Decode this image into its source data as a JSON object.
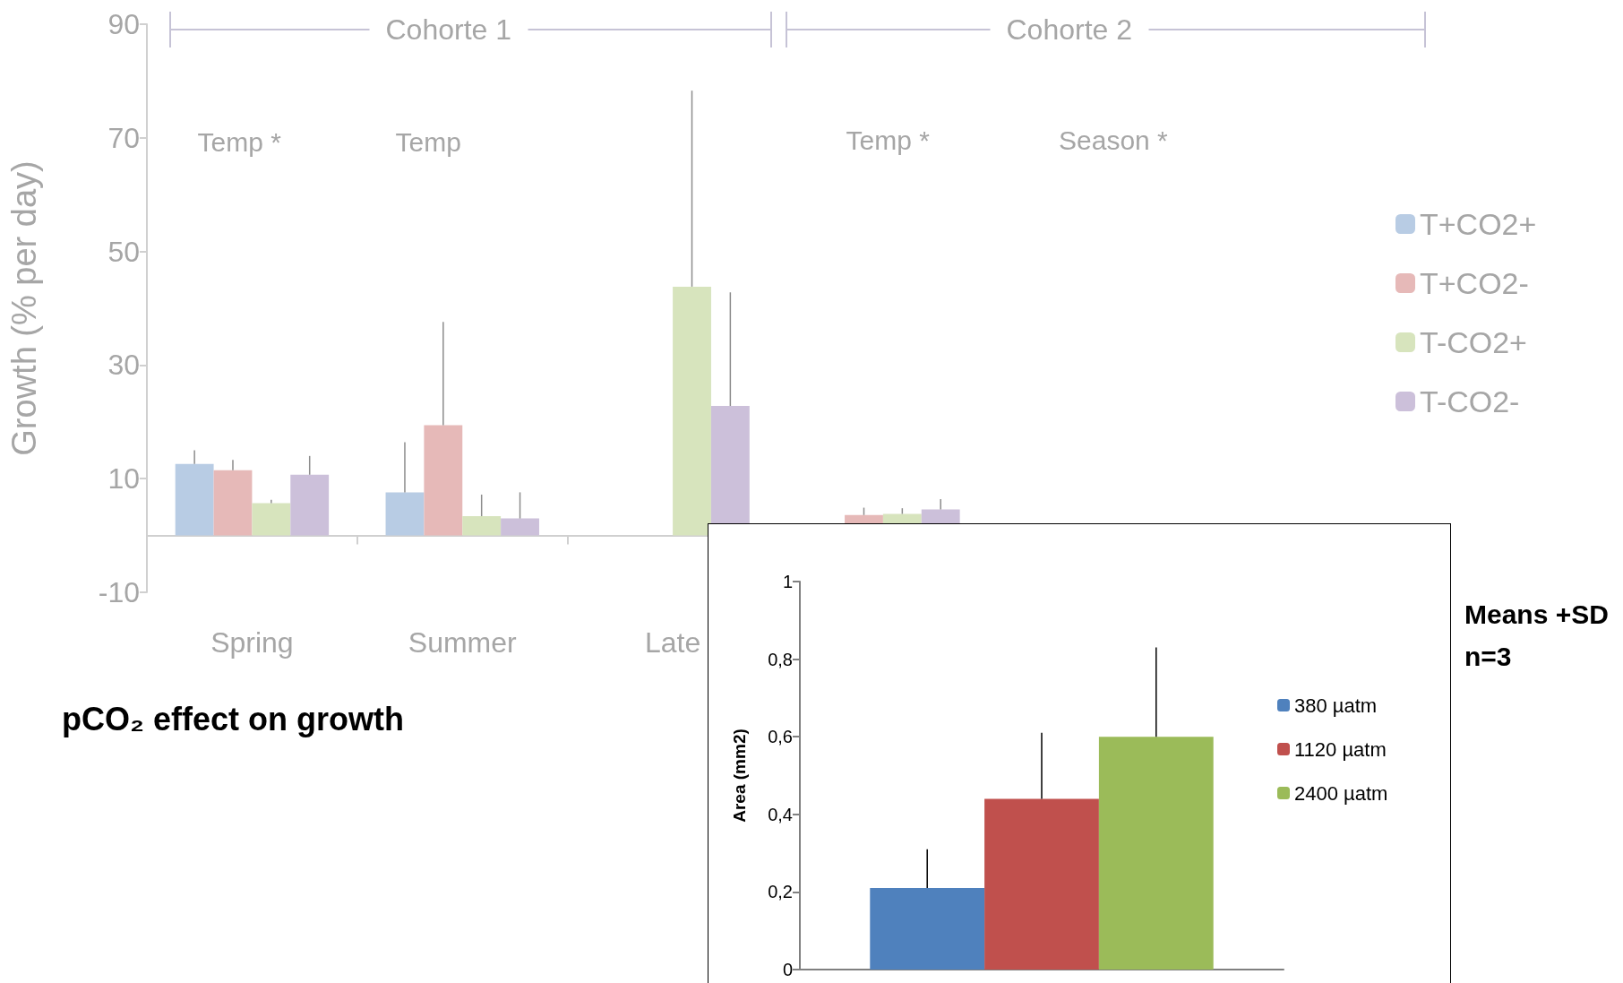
{
  "chart_data": [
    {
      "type": "bar",
      "title": "pCO₂ effect on growth",
      "ylabel": "Growth (% per day)",
      "categories": [
        "Spring",
        "Summer",
        "Late",
        null,
        null,
        null
      ],
      "series": [
        {
          "name": "T+CO2+",
          "color": "#b8cce4",
          "values": [
            12.6,
            7.6,
            null,
            null,
            null,
            null
          ],
          "errors": [
            [
              12.6,
              15.0
            ],
            [
              7.6,
              16.4
            ],
            null,
            null,
            null,
            null
          ]
        },
        {
          "name": "T+CO2-",
          "color": "#e6b9b8",
          "values": [
            11.5,
            19.4,
            null,
            3.6,
            null,
            null
          ],
          "errors": [
            [
              11.5,
              13.3
            ],
            [
              19.4,
              37.6
            ],
            null,
            [
              3.6,
              4.9
            ],
            null,
            null
          ]
        },
        {
          "name": "T-CO2+",
          "color": "#d7e4bd",
          "values": [
            5.7,
            3.4,
            43.8,
            3.8,
            null,
            null
          ],
          "errors": [
            [
              5.7,
              6.3
            ],
            [
              3.4,
              7.2
            ],
            [
              43.8,
              78.3
            ],
            [
              3.8,
              4.8
            ],
            null,
            null
          ]
        },
        {
          "name": "T-CO2-",
          "color": "#ccc0da",
          "values": [
            10.7,
            3.0,
            22.8,
            4.6,
            null,
            null
          ],
          "errors": [
            [
              10.7,
              14.0
            ],
            [
              3.0,
              7.6
            ],
            [
              22.8,
              42.8
            ],
            [
              4.6,
              6.4
            ],
            null,
            null
          ]
        }
      ],
      "ylim": [
        -10,
        90
      ],
      "yticks": [
        -10,
        10,
        30,
        50,
        70,
        90
      ],
      "grid": false,
      "legend": "right",
      "annotations": [
        "Cohorte 1",
        "Cohorte 2",
        "Temp *",
        "Temp",
        "Temp *",
        "Season *",
        "Means +SD",
        "n=3"
      ]
    },
    {
      "type": "bar",
      "ylabel": "Area (mm2)",
      "categories": [
        null
      ],
      "series": [
        {
          "name": "380 µatm",
          "color": "#4f81bd",
          "values": [
            0.21
          ],
          "errors": [
            [
              0.21,
              0.31
            ]
          ]
        },
        {
          "name": "1120 µatm",
          "color": "#c0504d",
          "values": [
            0.44
          ],
          "errors": [
            [
              0.44,
              0.61
            ]
          ]
        },
        {
          "name": "2400 µatm",
          "color": "#9bbb59",
          "values": [
            0.6
          ],
          "errors": [
            [
              0.6,
              0.83
            ]
          ]
        }
      ],
      "ylim": [
        0,
        1
      ],
      "yticks": [
        0,
        {
          "value": 0.2,
          "label": "0,2"
        },
        {
          "value": 0.4,
          "label": "0,4"
        },
        {
          "value": 0.6,
          "label": "0,6"
        },
        {
          "value": 0.8,
          "label": "0,8"
        },
        1
      ],
      "grid": false,
      "legend": "right"
    }
  ]
}
